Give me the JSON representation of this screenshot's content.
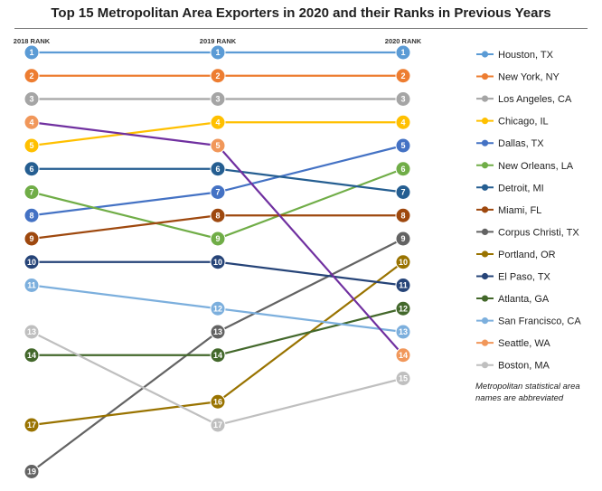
{
  "title": "Top 15 Metropolitan Area Exporters in 2020 and their Ranks in Previous Years",
  "note": "Metropolitan statistical area names are abbreviated",
  "chart_data": {
    "type": "line",
    "title": "Top 15 Metropolitan Area Exporters in 2020 and their Ranks in Previous Years",
    "x": [
      "2018 RANK",
      "2019 RANK",
      "2020 RANK"
    ],
    "y_inverted": true,
    "grid": false,
    "legend_position": "right",
    "series": [
      {
        "name": "Houston, TX",
        "values": [
          1,
          1,
          1
        ],
        "color": "#5b9bd5",
        "legend_color": "#5b9bd5"
      },
      {
        "name": "New York, NY",
        "values": [
          2,
          2,
          2
        ],
        "color": "#ed7d31",
        "legend_color": "#ed7d31"
      },
      {
        "name": "Los Angeles, CA",
        "values": [
          3,
          3,
          3
        ],
        "color": "#a5a5a5",
        "legend_color": "#a5a5a5"
      },
      {
        "name": "Chicago, IL",
        "values": [
          5,
          4,
          4
        ],
        "color": "#ffc000",
        "legend_color": "#ffc000"
      },
      {
        "name": "Dallas, TX",
        "values": [
          8,
          7,
          5
        ],
        "color": "#4472c4",
        "legend_color": "#4472c4"
      },
      {
        "name": "New Orleans, LA",
        "values": [
          7,
          9,
          6
        ],
        "color": "#70ad47",
        "legend_color": "#70ad47"
      },
      {
        "name": "Detroit, MI",
        "values": [
          6,
          6,
          7
        ],
        "color": "#255e91",
        "legend_color": "#255e91"
      },
      {
        "name": "Miami, FL",
        "values": [
          9,
          8,
          8
        ],
        "color": "#9e480e",
        "legend_color": "#9e480e"
      },
      {
        "name": "Corpus Christi, TX",
        "values": [
          19,
          13,
          9
        ],
        "color": "#636363",
        "legend_color": "#636363"
      },
      {
        "name": "Portland, OR",
        "values": [
          17,
          16,
          10
        ],
        "color": "#997300",
        "legend_color": "#997300"
      },
      {
        "name": "El Paso, TX",
        "values": [
          10,
          10,
          11
        ],
        "color": "#264478",
        "legend_color": "#264478"
      },
      {
        "name": "Atlanta, GA",
        "values": [
          14,
          14,
          12
        ],
        "color": "#43682b",
        "legend_color": "#43682b"
      },
      {
        "name": "San Francisco, CA",
        "values": [
          11,
          12,
          13
        ],
        "color": "#7cafdd",
        "legend_color": "#7cafdd"
      },
      {
        "name": "Seattle, WA",
        "values": [
          4,
          5,
          14
        ],
        "color": "#7030a0",
        "marker_color": "#f1975a",
        "legend_color": "#f1975a"
      },
      {
        "name": "Boston, MA",
        "values": [
          13,
          17,
          15
        ],
        "color": "#bfbfbf",
        "legend_color": "#bfbfbf"
      }
    ]
  }
}
